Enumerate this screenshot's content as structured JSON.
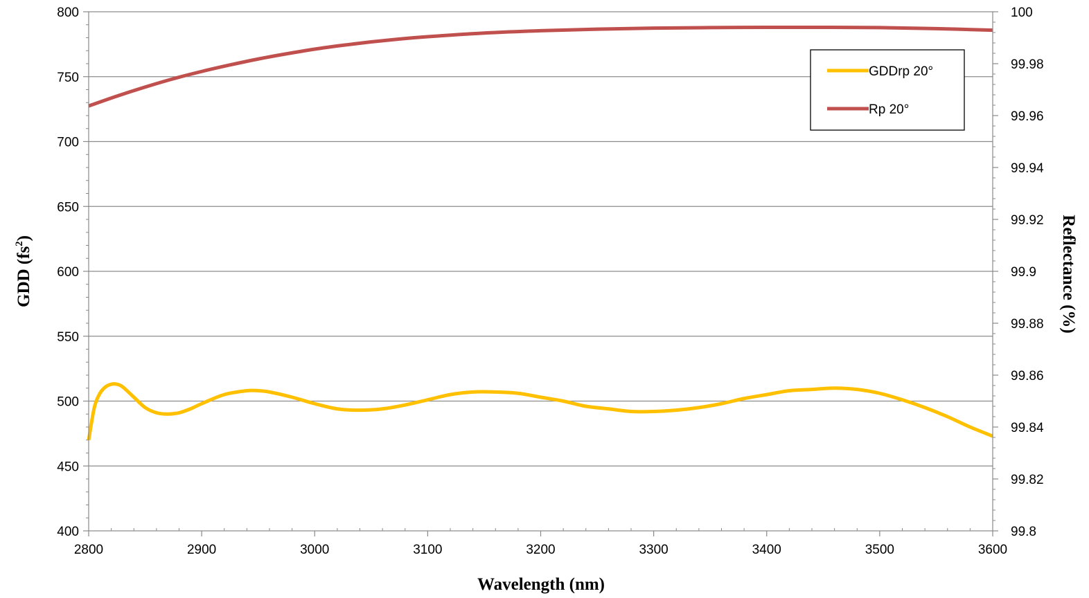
{
  "chart_data": {
    "type": "line",
    "title": "",
    "xlabel": "Wavelength (nm)",
    "ylabel_left": {
      "main": "GDD (fs",
      "sup": "2",
      "close": ")"
    },
    "ylabel_right": "Reflectance (%)",
    "xlim": [
      2800,
      3600
    ],
    "ylim_left": [
      400,
      800
    ],
    "ylim_right": [
      99.8,
      100
    ],
    "x_ticks": [
      "2800",
      "2900",
      "3000",
      "3100",
      "3200",
      "3300",
      "3400",
      "3500",
      "3600"
    ],
    "y_left_ticks": [
      "400",
      "450",
      "500",
      "550",
      "600",
      "650",
      "700",
      "750",
      "800"
    ],
    "y_right_ticks": [
      "99.8",
      "99.82",
      "99.84",
      "99.86",
      "99.88",
      "99.9",
      "99.92",
      "99.94",
      "99.96",
      "99.98",
      "100"
    ],
    "grid": true,
    "legend_position": "top-right",
    "series": [
      {
        "name": "GDDrp 20°",
        "axis": "left",
        "color": "#FFC000",
        "x": [
          2800,
          2805,
          2810,
          2815,
          2820,
          2825,
          2830,
          2840,
          2850,
          2860,
          2870,
          2880,
          2890,
          2900,
          2920,
          2940,
          2950,
          2960,
          2980,
          3000,
          3020,
          3040,
          3060,
          3080,
          3100,
          3120,
          3140,
          3160,
          3180,
          3200,
          3220,
          3240,
          3260,
          3280,
          3300,
          3320,
          3340,
          3360,
          3380,
          3400,
          3420,
          3440,
          3460,
          3480,
          3500,
          3520,
          3540,
          3560,
          3580,
          3600
        ],
        "values": [
          470,
          495,
          506,
          511,
          513,
          513,
          511,
          503,
          495,
          491,
          490,
          491,
          494,
          498,
          505,
          508,
          508,
          507,
          503,
          498,
          494,
          493,
          494,
          497,
          501,
          505,
          507,
          507,
          506,
          503,
          500,
          496,
          494,
          492,
          492,
          493,
          495,
          498,
          502,
          505,
          508,
          509,
          510,
          509,
          506,
          501,
          495,
          488,
          480,
          473
        ]
      },
      {
        "name": "Rp 20°",
        "axis": "right",
        "color": "#C0504D",
        "x": [
          2800,
          2825,
          2850,
          2875,
          2900,
          2925,
          2950,
          2975,
          3000,
          3025,
          3050,
          3075,
          3100,
          3150,
          3200,
          3250,
          3300,
          3350,
          3400,
          3450,
          3500,
          3550,
          3600
        ],
        "values": [
          99.9637,
          99.9675,
          99.971,
          99.9742,
          99.977,
          99.9795,
          99.9818,
          99.9838,
          99.9856,
          99.9871,
          99.9884,
          99.9895,
          99.9904,
          99.9918,
          99.9927,
          99.9933,
          99.9937,
          99.9939,
          99.994,
          99.994,
          99.9939,
          99.9935,
          99.9929
        ]
      }
    ]
  }
}
